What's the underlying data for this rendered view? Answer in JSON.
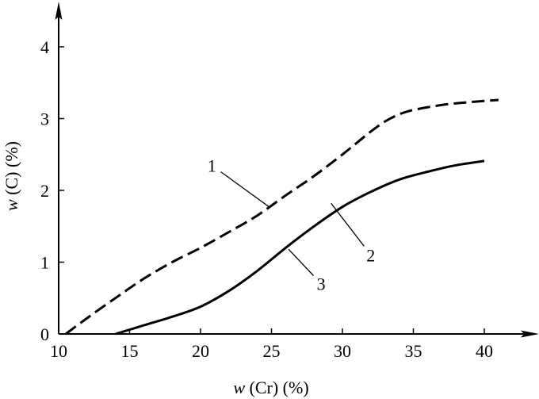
{
  "chart_data": {
    "type": "line",
    "xlabel_var": "w",
    "xlabel_rest": " (Cr) (%)",
    "ylabel_var": "w",
    "ylabel_rest": " (C) (%)",
    "xlim": [
      10,
      42
    ],
    "ylim": [
      0,
      4.5
    ],
    "xticks": [
      10,
      15,
      20,
      25,
      30,
      35,
      40
    ],
    "yticks": [
      0,
      1,
      2,
      3,
      4
    ],
    "grid": false,
    "series": [
      {
        "label": "1",
        "style": "dashed",
        "x": [
          10.5,
          12,
          14,
          16,
          18,
          20,
          22,
          24,
          26,
          28,
          30,
          31,
          32,
          33,
          34,
          35,
          37,
          39,
          41
        ],
        "y": [
          0,
          0.22,
          0.5,
          0.77,
          1.0,
          1.2,
          1.42,
          1.65,
          1.93,
          2.2,
          2.5,
          2.66,
          2.82,
          2.96,
          3.06,
          3.12,
          3.19,
          3.23,
          3.26
        ]
      },
      {
        "label": "2",
        "style": "solid",
        "x": [
          14,
          16,
          18,
          20,
          22,
          24,
          26,
          28,
          30,
          32,
          34,
          36,
          38,
          40
        ],
        "y": [
          0,
          0.12,
          0.24,
          0.38,
          0.6,
          0.88,
          1.2,
          1.5,
          1.77,
          1.98,
          2.15,
          2.26,
          2.35,
          2.41
        ]
      }
    ],
    "annotations": [
      {
        "text": "1",
        "label_at": [
          20.8,
          2.35
        ],
        "points_to": [
          24.9,
          1.76
        ]
      },
      {
        "text": "2",
        "label_at": [
          32,
          1.1
        ],
        "points_to": [
          29.2,
          1.82
        ]
      },
      {
        "text": "3",
        "label_at": [
          28.5,
          0.7
        ],
        "points_to": [
          26.2,
          1.18
        ]
      }
    ],
    "colors": {
      "axis": "#000000",
      "line": "#000000"
    }
  }
}
